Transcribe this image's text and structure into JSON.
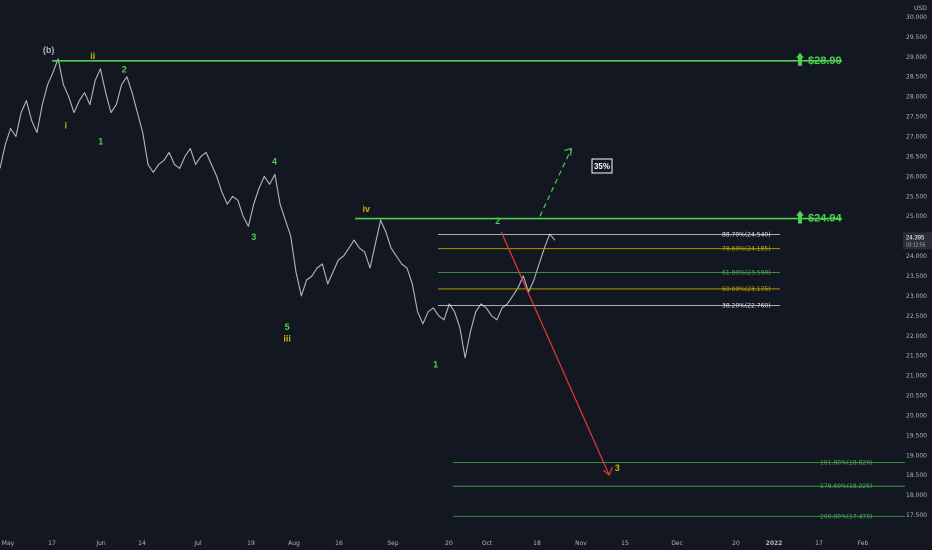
{
  "colors": {
    "background": "#131722",
    "price": "#b2b5be",
    "green": "#4cd14c",
    "yellow": "#c8b400",
    "white": "#ffffff",
    "red": "#e53935",
    "fib_white": "#e0e0e0",
    "fib_yellow": "#c8a800",
    "fib_green": "#4caf50"
  },
  "chart_data": {
    "type": "line",
    "title": "",
    "y_axis": {
      "unit_label": "USD",
      "ylim": [
        17.0,
        30.3
      ],
      "ticks": [
        "17.500",
        "18.000",
        "18.500",
        "19.000",
        "19.500",
        "20.000",
        "20.500",
        "21.000",
        "21.500",
        "22.000",
        "22.500",
        "23.000",
        "23.500",
        "24.000",
        "24.500",
        "25.000",
        "25.500",
        "26.000",
        "26.500",
        "27.000",
        "27.500",
        "28.000",
        "28.500",
        "29.000",
        "29.500",
        "30.000"
      ],
      "current_price": "24.395",
      "countdown": "03:12:55"
    },
    "x_axis": {
      "tick_labels": [
        "May",
        "17",
        "Jun",
        "14",
        "Jul",
        "19",
        "Aug",
        "16",
        "Sep",
        "20",
        "Oct",
        "18",
        "Nov",
        "15",
        "Dec",
        "20",
        "2022",
        "17",
        "Feb"
      ]
    },
    "series": [
      {
        "values": [
          26.2,
          26.8,
          27.2,
          27.0,
          27.6,
          27.9,
          27.4,
          27.1,
          27.8,
          28.3,
          28.6,
          28.95,
          28.3,
          28.0,
          27.6,
          27.9,
          28.1,
          27.8,
          28.4,
          28.7,
          28.1,
          27.6,
          27.8,
          28.3,
          28.5,
          28.1,
          27.6,
          27.1,
          26.3,
          26.1,
          26.3,
          26.4,
          26.6,
          26.3,
          26.2,
          26.5,
          26.7,
          26.3,
          26.5,
          26.6,
          26.3,
          26.0,
          25.6,
          25.3,
          25.5,
          25.4,
          25.0,
          24.75,
          25.3,
          25.7,
          26.0,
          25.8,
          26.05,
          25.3,
          24.9,
          24.5,
          23.6,
          23.0,
          23.4,
          23.5,
          23.7,
          23.8,
          23.3,
          23.6,
          23.9,
          24.0,
          24.2,
          24.4,
          24.2,
          24.1,
          23.7,
          24.3,
          24.9,
          24.6,
          24.2,
          24.0,
          23.8,
          23.7,
          23.3,
          22.6,
          22.3,
          22.6,
          22.7,
          22.5,
          22.4,
          22.8,
          22.6,
          22.2,
          21.45,
          22.1,
          22.6,
          22.8,
          22.7,
          22.5,
          22.4,
          22.7,
          22.8,
          23.0,
          23.2,
          23.5,
          23.1,
          23.4,
          23.8,
          24.2,
          24.55,
          24.395
        ]
      }
    ],
    "horizontal_levels": [
      {
        "label": "$28.90",
        "value": 28.9
      },
      {
        "label": "$24.94",
        "value": 24.94
      }
    ],
    "fib_levels": [
      {
        "label": "88.70%(24.540)",
        "value": 24.54,
        "color": "white"
      },
      {
        "label": "78.60%(24.185)",
        "value": 24.185,
        "color": "yellow"
      },
      {
        "label": "61.80%(23.590)",
        "value": 23.59,
        "color": "green"
      },
      {
        "label": "50.00%(23.175)",
        "value": 23.175,
        "color": "yellow"
      },
      {
        "label": "38.20%(22.760)",
        "value": 22.76,
        "color": "white"
      },
      {
        "label": "161.80%(18.820)",
        "value": 18.82,
        "color": "green"
      },
      {
        "label": "178.60%(18.225)",
        "value": 18.225,
        "color": "green"
      },
      {
        "label": "200.00%(17.470)",
        "value": 17.47,
        "color": "green"
      }
    ],
    "wave_labels": [
      {
        "text": "(b)",
        "color": "price",
        "x_frac": 0.054,
        "y": 29.1
      },
      {
        "text": "ii",
        "color": "yellow",
        "x_frac": 0.103,
        "y": 28.95
      },
      {
        "text": "2",
        "color": "green",
        "x_frac": 0.138,
        "y": 28.6
      },
      {
        "text": "i",
        "color": "yellow",
        "x_frac": 0.073,
        "y": 27.2
      },
      {
        "text": "1",
        "color": "green",
        "x_frac": 0.112,
        "y": 26.8
      },
      {
        "text": "4",
        "color": "green",
        "x_frac": 0.305,
        "y": 26.3
      },
      {
        "text": "3",
        "color": "green",
        "x_frac": 0.282,
        "y": 24.4
      },
      {
        "text": "iv",
        "color": "yellow",
        "x_frac": 0.407,
        "y": 25.1
      },
      {
        "text": "5",
        "color": "green",
        "x_frac": 0.319,
        "y": 22.15
      },
      {
        "text": "iii",
        "color": "yellow",
        "x_frac": 0.319,
        "y": 21.85
      },
      {
        "text": "2",
        "color": "green",
        "x_frac": 0.553,
        "y": 24.8
      },
      {
        "text": "1",
        "color": "green",
        "x_frac": 0.484,
        "y": 21.2
      },
      {
        "text": "3",
        "color": "yellow",
        "x_frac": 0.686,
        "y": 18.6
      }
    ],
    "annotations": {
      "percent_box": "35%",
      "up_projection": {
        "from_x_frac": 0.6,
        "from_y": 25.0,
        "to_x_frac": 0.635,
        "to_y": 26.7
      },
      "down_projection": {
        "from_x_frac": 0.557,
        "from_y": 24.6,
        "to_x_frac": 0.677,
        "to_y": 18.5
      }
    }
  }
}
